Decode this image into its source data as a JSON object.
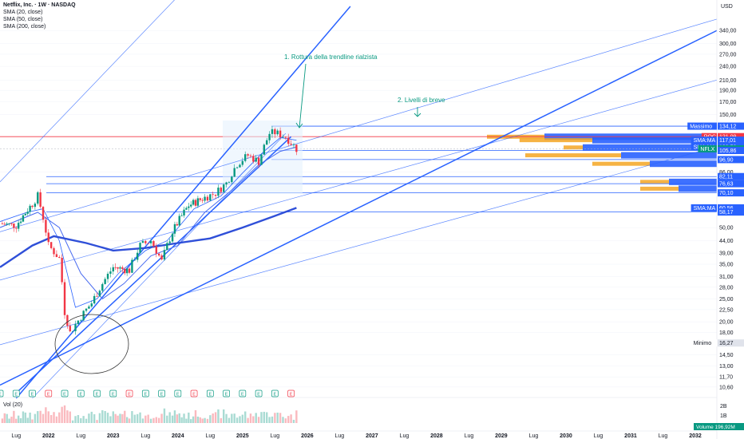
{
  "header": {
    "title": "Netflix, Inc. · 1W · NASDAQ",
    "indicators": [
      "SMA (20, close)",
      "SMA (50, close)",
      "SMA (200, close)"
    ],
    "volume_label": "Vol (20)",
    "currency": "USD"
  },
  "annotations": {
    "note1": "1. Rottura della trendline rialzista",
    "note2": "2. Livelli di breve",
    "note_color": "#089981"
  },
  "price_axis": {
    "ticks": [
      "340,00",
      "300,00",
      "270,00",
      "240,00",
      "210,00",
      "190,00",
      "170,00",
      "150,00",
      "86,00",
      "50,00",
      "44,00",
      "39,00",
      "35,00",
      "31,00",
      "28,00",
      "25,00",
      "22,50",
      "20,00",
      "18,00",
      "14,50",
      "13,00",
      "11,70",
      "10,60"
    ],
    "tick_values": [
      340,
      300,
      270,
      240,
      210,
      190,
      170,
      150,
      86,
      50,
      44,
      39,
      35,
      31,
      28,
      25,
      22.5,
      20,
      18,
      14.5,
      13,
      11.7,
      10.6
    ],
    "scale": "log"
  },
  "price_labels": [
    {
      "tag": "Massimo",
      "value": "134,12",
      "color": "#2962ff"
    },
    {
      "tag": "POC",
      "value": "121,09",
      "color": "#f23645"
    },
    {
      "tag": "SMA:MA",
      "value": "117,01",
      "color": "#2962ff"
    },
    {
      "tag": "SMA:MA",
      "value": "109,58",
      "color": "#2962ff"
    },
    {
      "tag": "NFLX",
      "value": "107,56",
      "color": "#089981"
    },
    {
      "tag": "",
      "value": "105,86",
      "color": "#2962ff"
    },
    {
      "tag": "",
      "value": "96,90",
      "color": "#2962ff"
    },
    {
      "tag": "",
      "value": "82,11",
      "color": "#2962ff"
    },
    {
      "tag": "",
      "value": "76,63",
      "color": "#2962ff"
    },
    {
      "tag": "",
      "value": "70,10",
      "color": "#2962ff"
    },
    {
      "tag": "SMA:MA",
      "value": "60,56",
      "color": "#2962ff"
    },
    {
      "tag": "",
      "value": "58,17",
      "color": "#2962ff"
    },
    {
      "tag": "Minimo",
      "value": "16,27",
      "color": "#e0e3eb"
    }
  ],
  "time_axis": [
    "Lug",
    "2022",
    "Lug",
    "2023",
    "Lug",
    "2024",
    "Lug",
    "2025",
    "Lug",
    "2026",
    "Lug",
    "2027",
    "Lug",
    "2028",
    "Lug",
    "2029",
    "Lug",
    "2030",
    "Lug",
    "2031",
    "Lug",
    "2032"
  ],
  "volume_axis": [
    "2B",
    "1B"
  ],
  "volume_badge": {
    "tag": "Volume",
    "value": "196,92M"
  },
  "earnings_marker": "E",
  "colors": {
    "up": "#089981",
    "down": "#f23645",
    "trend": "#2962ff",
    "profile_blue": "#2962ff",
    "profile_orange": "#f5a623",
    "poc": "#f23645"
  },
  "chart_data": {
    "type": "candlestick",
    "title": "Netflix, Inc. · 1W · NASDAQ",
    "y_scale": "log",
    "ylim": [
      9.8,
      430
    ],
    "x_start": "2021-04",
    "x_end": "2032-05",
    "price_path": [
      {
        "date": "2021-04",
        "close": 52
      },
      {
        "date": "2021-07",
        "close": 51
      },
      {
        "date": "2021-10",
        "close": 63
      },
      {
        "date": "2021-11",
        "close": 68
      },
      {
        "date": "2022-01",
        "close": 42
      },
      {
        "date": "2022-03",
        "close": 37
      },
      {
        "date": "2022-04",
        "close": 22
      },
      {
        "date": "2022-05",
        "close": 18
      },
      {
        "date": "2022-07",
        "close": 21
      },
      {
        "date": "2022-09",
        "close": 24
      },
      {
        "date": "2022-11",
        "close": 29
      },
      {
        "date": "2023-01",
        "close": 34
      },
      {
        "date": "2023-04",
        "close": 33
      },
      {
        "date": "2023-06",
        "close": 42
      },
      {
        "date": "2023-08",
        "close": 44
      },
      {
        "date": "2023-10",
        "close": 36
      },
      {
        "date": "2023-12",
        "close": 48
      },
      {
        "date": "2024-03",
        "close": 62
      },
      {
        "date": "2024-06",
        "close": 67
      },
      {
        "date": "2024-08",
        "close": 70
      },
      {
        "date": "2024-10",
        "close": 77
      },
      {
        "date": "2024-12",
        "close": 93
      },
      {
        "date": "2025-02",
        "close": 101
      },
      {
        "date": "2025-04",
        "close": 95
      },
      {
        "date": "2025-06",
        "close": 125
      },
      {
        "date": "2025-07",
        "close": 126
      },
      {
        "date": "2025-09",
        "close": 121
      },
      {
        "date": "2025-11",
        "close": 107.56
      }
    ],
    "sma20": [
      {
        "date": "2021-04",
        "value": 53
      },
      {
        "date": "2021-09",
        "value": 58
      },
      {
        "date": "2021-12",
        "value": 60
      },
      {
        "date": "2022-03",
        "value": 44
      },
      {
        "date": "2022-06",
        "value": 23
      },
      {
        "date": "2022-10",
        "value": 25
      },
      {
        "date": "2023-02",
        "value": 32
      },
      {
        "date": "2023-07",
        "value": 40
      },
      {
        "date": "2023-11",
        "value": 44
      },
      {
        "date": "2024-04",
        "value": 60
      },
      {
        "date": "2024-09",
        "value": 68
      },
      {
        "date": "2025-01",
        "value": 85
      },
      {
        "date": "2025-05",
        "value": 105
      },
      {
        "date": "2025-08",
        "value": 120
      },
      {
        "date": "2025-11",
        "value": 117.01
      }
    ],
    "sma50": [
      {
        "date": "2021-04",
        "value": 50
      },
      {
        "date": "2021-11",
        "value": 58
      },
      {
        "date": "2022-03",
        "value": 50
      },
      {
        "date": "2022-07",
        "value": 32
      },
      {
        "date": "2022-11",
        "value": 25
      },
      {
        "date": "2023-03",
        "value": 29
      },
      {
        "date": "2023-08",
        "value": 38
      },
      {
        "date": "2024-01",
        "value": 42
      },
      {
        "date": "2024-06",
        "value": 58
      },
      {
        "date": "2024-11",
        "value": 72
      },
      {
        "date": "2025-04",
        "value": 92
      },
      {
        "date": "2025-08",
        "value": 105
      },
      {
        "date": "2025-11",
        "value": 109.58
      }
    ],
    "sma200": [
      {
        "date": "2021-04",
        "value": 34
      },
      {
        "date": "2021-10",
        "value": 42
      },
      {
        "date": "2022-02",
        "value": 46
      },
      {
        "date": "2022-08",
        "value": 43
      },
      {
        "date": "2023-01",
        "value": 40
      },
      {
        "date": "2023-07",
        "value": 41
      },
      {
        "date": "2024-01",
        "value": 43
      },
      {
        "date": "2024-07",
        "value": 45
      },
      {
        "date": "2025-01",
        "value": 50
      },
      {
        "date": "2025-07",
        "value": 56
      },
      {
        "date": "2025-11",
        "value": 60.56
      }
    ],
    "horizontal_levels": [
      134.12,
      121.09,
      107.56,
      105.86,
      96.9,
      82.11,
      76.63,
      70.1,
      58.17
    ],
    "channel_lines": [
      {
        "from": {
          "date": "2021-04",
          "price": 78
        },
        "to": {
          "date": "2025-06",
          "price": 1200
        }
      },
      {
        "from": {
          "date": "2021-04",
          "price": 48
        },
        "to": {
          "date": "2032-05",
          "price": 380
        }
      },
      {
        "from": {
          "date": "2021-04",
          "price": 30
        },
        "to": {
          "date": "2032-05",
          "price": 210
        }
      },
      {
        "from": {
          "date": "2021-04",
          "price": 16
        },
        "to": {
          "date": "2032-05",
          "price": 110
        }
      },
      {
        "from": {
          "date": "2021-04",
          "price": 10.8
        },
        "to": {
          "date": "2032-05",
          "price": 340
        }
      },
      {
        "from": {
          "date": "2021-07",
          "price": 10
        },
        "to": {
          "date": "2025-10",
          "price": 121
        }
      },
      {
        "from": {
          "date": "2021-07",
          "price": 9.5
        },
        "to": {
          "date": "2026-09",
          "price": 430
        }
      },
      {
        "from": {
          "date": "2021-10",
          "price": 9.5
        },
        "to": {
          "date": "2025-09",
          "price": 125
        }
      }
    ],
    "volume_profile": [
      {
        "price": 121,
        "blue": 0.9,
        "orange": 0.3
      },
      {
        "price": 117,
        "blue": 0.65,
        "orange": 0.38
      },
      {
        "price": 109,
        "blue": 0.7,
        "orange": 0.1
      },
      {
        "price": 101,
        "blue": 0.5,
        "orange": 0.5
      },
      {
        "price": 93,
        "blue": 0.35,
        "orange": 0.3
      },
      {
        "price": 78,
        "blue": 0.25,
        "orange": 0.15
      },
      {
        "price": 73,
        "blue": 0.2,
        "orange": 0.2
      }
    ]
  }
}
